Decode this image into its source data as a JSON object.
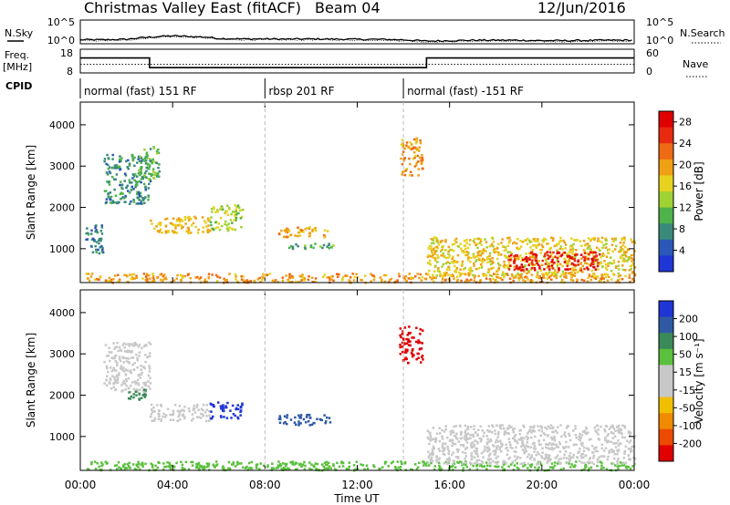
{
  "header": {
    "title": "Christmas Valley East (fitACF)",
    "beam": "Beam 04",
    "date": "12/Jun/2016"
  },
  "top_panels": {
    "nsky_label": "N.Sky",
    "nsky_ticks": [
      "10^5",
      "10^0"
    ],
    "nsearch_label": "N.Search",
    "nsearch_ticks": [
      "10^5",
      "10^0"
    ],
    "freq_label": "Freq.",
    "freq_unit": "[MHz]",
    "freq_ticks": [
      "18",
      "8"
    ],
    "nave_label": "Nave",
    "nave_ticks": [
      "60",
      "0"
    ],
    "cpid_label": "CPID"
  },
  "colors": {
    "power_scale": [
      "#1f35d6",
      "#2b57b8",
      "#3a8a7a",
      "#4db34a",
      "#9fd233",
      "#e6d21f",
      "#f0a014",
      "#ee6a14",
      "#e82a10",
      "#e00000"
    ],
    "velocity_scale": [
      "#1f35d6",
      "#2f5aa3",
      "#3b8a5a",
      "#5ac03d",
      "#c8c8c8",
      "#c8c8c8",
      "#f0c000",
      "#f08a00",
      "#ec4a00",
      "#e00000"
    ],
    "line": "#000000",
    "dashed": "#bbbbbb"
  },
  "chart_data": [
    {
      "type": "line",
      "name": "N.Sky / N.Search",
      "x": [
        0,
        1,
        2,
        2.5,
        3,
        3.5,
        4,
        4.5,
        5,
        5.5,
        6,
        7,
        8,
        9,
        10,
        11,
        12,
        13,
        14,
        15,
        16,
        17,
        18,
        19,
        20,
        21,
        22,
        23,
        24
      ],
      "y_log": [
        0.7,
        0.7,
        0.8,
        1.1,
        1.3,
        1.5,
        1.6,
        1.5,
        1.4,
        1.3,
        1.0,
        0.9,
        0.9,
        0.85,
        0.9,
        0.85,
        0.8,
        0.8,
        0.7,
        0.4,
        0.5,
        0.6,
        0.6,
        0.6,
        0.5,
        0.5,
        0.55,
        0.6,
        0.6
      ]
    },
    {
      "type": "line",
      "name": "Freq",
      "x": [
        0,
        3,
        3,
        15,
        15,
        24
      ],
      "y": [
        14.4,
        14.4,
        10.0,
        10.0,
        14.4,
        14.4
      ],
      "ylim": [
        8,
        18
      ]
    },
    {
      "type": "line",
      "name": "Nave",
      "x": [
        0,
        24
      ],
      "y": [
        21,
        21
      ],
      "ylim": [
        0,
        60
      ]
    },
    {
      "type": "table",
      "name": "CPID",
      "segments": [
        {
          "start": 0,
          "end": 8,
          "label": "normal (fast) 151 RF"
        },
        {
          "start": 8,
          "end": 14,
          "label": "rbsp 201 RF"
        },
        {
          "start": 14,
          "end": 24,
          "label": "normal (fast) -151 RF"
        }
      ]
    },
    {
      "type": "heatmap",
      "quantity": "Power",
      "ylabel": "Slant Range [km]",
      "xlabel": "Time UT",
      "xlim": [
        0,
        24
      ],
      "ylim": [
        180,
        4550
      ],
      "yticks": [
        1000,
        2000,
        3000,
        4000
      ],
      "colorbar_label": "Power [dB]",
      "colorbar_ticks": [
        4,
        8,
        12,
        16,
        20,
        24,
        28
      ],
      "colorbar_range": [
        0,
        30
      ],
      "regions": [
        {
          "t0": 0.2,
          "t1": 24,
          "r0": 200,
          "r1": 420,
          "v": 20
        },
        {
          "t0": 0.2,
          "t1": 1.0,
          "r0": 900,
          "r1": 1600,
          "v": 7
        },
        {
          "t0": 1.0,
          "t1": 3.0,
          "r0": 2100,
          "r1": 3300,
          "v": 8
        },
        {
          "t0": 2.5,
          "t1": 3.4,
          "r0": 2700,
          "r1": 3500,
          "v": 11
        },
        {
          "t0": 3.0,
          "t1": 5.6,
          "r0": 1400,
          "r1": 1800,
          "v": 18
        },
        {
          "t0": 5.6,
          "t1": 7.0,
          "r0": 1450,
          "r1": 2100,
          "v": 14
        },
        {
          "t0": 8.5,
          "t1": 10.8,
          "r0": 1300,
          "r1": 1550,
          "v": 19
        },
        {
          "t0": 9.0,
          "t1": 11.0,
          "r0": 1000,
          "r1": 1150,
          "v": 10
        },
        {
          "t0": 13.8,
          "t1": 14.8,
          "r0": 2800,
          "r1": 3700,
          "v": 20
        },
        {
          "t0": 15.0,
          "t1": 24,
          "r0": 350,
          "r1": 1300,
          "v": 17
        },
        {
          "t0": 18.5,
          "t1": 22.5,
          "r0": 500,
          "r1": 950,
          "v": 27
        }
      ]
    },
    {
      "type": "heatmap",
      "quantity": "Velocity",
      "ylabel": "Slant Range [km]",
      "xlabel": "Time UT",
      "xlim": [
        0,
        24
      ],
      "ylim": [
        180,
        4550
      ],
      "yticks": [
        1000,
        2000,
        3000,
        4000
      ],
      "xticks": [
        "00:00",
        "04:00",
        "08:00",
        "12:00",
        "16:00",
        "20:00",
        "00:00"
      ],
      "colorbar_label": "Velocity [m s⁻¹]",
      "colorbar_ticks": [
        200,
        100,
        50,
        15,
        -15,
        -50,
        -100,
        -200
      ],
      "regions": [
        {
          "t0": 0.2,
          "t1": 24,
          "r0": 200,
          "r1": 420,
          "v": 40
        },
        {
          "t0": 1.0,
          "t1": 3.0,
          "r0": 2100,
          "r1": 3300,
          "v": 0
        },
        {
          "t0": 2.0,
          "t1": 2.8,
          "r0": 1900,
          "r1": 2200,
          "v": 60
        },
        {
          "t0": 3.0,
          "t1": 5.6,
          "r0": 1400,
          "r1": 1800,
          "v": 0
        },
        {
          "t0": 5.6,
          "t1": 7.0,
          "r0": 1450,
          "r1": 1850,
          "v": 250
        },
        {
          "t0": 8.5,
          "t1": 10.8,
          "r0": 1300,
          "r1": 1550,
          "v": 180
        },
        {
          "t0": 13.8,
          "t1": 14.8,
          "r0": 2800,
          "r1": 3700,
          "v": -250
        },
        {
          "t0": 15.0,
          "t1": 24,
          "r0": 350,
          "r1": 1300,
          "v": 0
        }
      ]
    }
  ]
}
